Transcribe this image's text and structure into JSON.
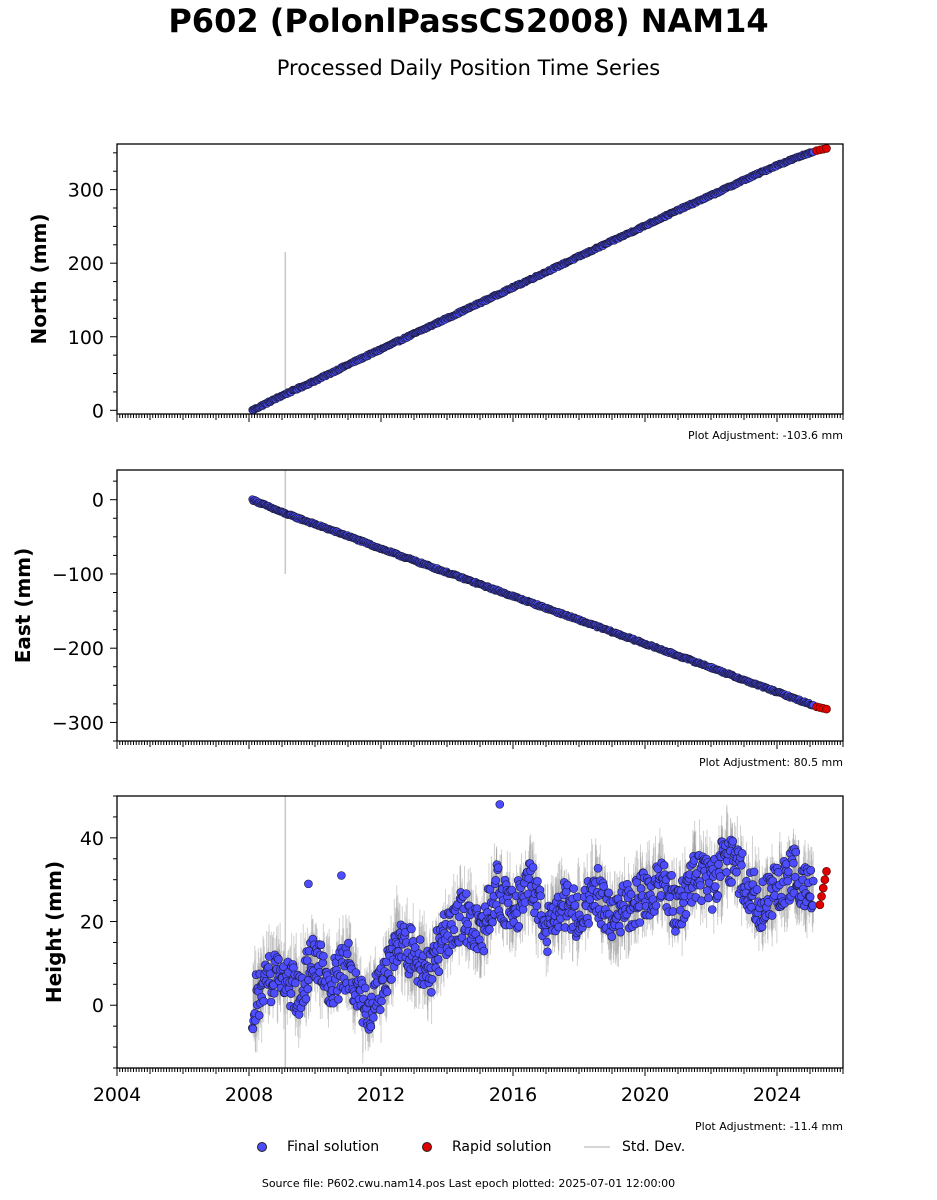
{
  "header": {
    "title": "P602 (PolonlPassCS2008) NAM14",
    "subtitle": "Processed Daily Position Time Series"
  },
  "footer": {
    "source": "Source file: P602.cwu.nam14.pos  Last epoch plotted: 2025-07-01 12:00:00"
  },
  "legend": {
    "final": "Final solution",
    "rapid": "Rapid solution",
    "std": "Std. Dev."
  },
  "colors": {
    "final": "#4d4dff",
    "rapid": "#e00000",
    "std": "#c8c8c8",
    "edge": "#1a1a3a"
  },
  "chart_data": [
    {
      "type": "scatter",
      "ylabel": "North (mm)",
      "adjustment": "Plot Adjustment: -103.6 mm",
      "xlim": [
        2004.0,
        2026.0
      ],
      "ylim": [
        -5,
        362
      ],
      "yticks": [
        0,
        100,
        200,
        300
      ],
      "ytick_labels": [
        "0",
        "100",
        "200",
        "300"
      ],
      "series": [
        {
          "name": "Final solution",
          "x": [
            2008.1,
            2009,
            2010,
            2011,
            2012,
            2013,
            2014,
            2015,
            2016,
            2017,
            2018,
            2019,
            2020,
            2021,
            2022,
            2023,
            2024,
            2025.1
          ],
          "y": [
            0,
            20,
            40,
            62,
            83,
            104,
            125,
            146,
            167,
            188,
            209,
            230,
            251,
            272,
            292,
            313,
            333,
            352
          ]
        },
        {
          "name": "Rapid solution",
          "x": [
            2025.2,
            2025.3,
            2025.4,
            2025.5
          ],
          "y": [
            353,
            354,
            355,
            356
          ]
        }
      ],
      "stddev_spike": {
        "x": 2009.1,
        "y_range": [
          15,
          215
        ]
      }
    },
    {
      "type": "scatter",
      "ylabel": "East (mm)",
      "adjustment": "Plot Adjustment: 80.5 mm",
      "xlim": [
        2004.0,
        2026.0
      ],
      "ylim": [
        -325,
        40
      ],
      "yticks": [
        0,
        -100,
        -200,
        -300
      ],
      "ytick_labels": [
        "0",
        "−100",
        "−200",
        "−300"
      ],
      "series": [
        {
          "name": "Final solution",
          "x": [
            2008.1,
            2009,
            2010,
            2011,
            2012,
            2013,
            2014,
            2015,
            2016,
            2017,
            2018,
            2019,
            2020,
            2021,
            2022,
            2023,
            2024,
            2025.1
          ],
          "y": [
            0,
            -17,
            -33,
            -49,
            -66,
            -82,
            -98,
            -114,
            -130,
            -146,
            -162,
            -178,
            -194,
            -210,
            -226,
            -243,
            -259,
            -277
          ]
        },
        {
          "name": "Rapid solution",
          "x": [
            2025.2,
            2025.3,
            2025.4,
            2025.5
          ],
          "y": [
            -279,
            -280,
            -281,
            -282
          ]
        }
      ],
      "stddev_spike": {
        "x": 2009.1,
        "y_range": [
          -100,
          40
        ]
      }
    },
    {
      "type": "scatter",
      "ylabel": "Height (mm)",
      "adjustment": "Plot Adjustment: -11.4 mm",
      "xlim": [
        2004.0,
        2026.0
      ],
      "ylim": [
        -15,
        50
      ],
      "yticks": [
        0,
        20,
        40
      ],
      "ytick_labels": [
        "0",
        "20",
        "40"
      ],
      "xticks": [
        2004,
        2008,
        2012,
        2016,
        2020,
        2024
      ],
      "xtick_labels": [
        "2004",
        "2008",
        "2012",
        "2016",
        "2020",
        "2024"
      ],
      "series": [
        {
          "name": "Final solution",
          "x": [
            2008.1,
            2008.5,
            2009,
            2009.5,
            2010,
            2010.5,
            2011,
            2011.5,
            2012,
            2012.5,
            2013,
            2013.5,
            2014,
            2014.5,
            2015,
            2015.5,
            2016,
            2016.5,
            2017,
            2017.5,
            2018,
            2018.5,
            2019,
            2019.5,
            2020,
            2020.5,
            2021,
            2021.5,
            2022,
            2022.5,
            2023,
            2023.5,
            2024,
            2024.5,
            2025.1
          ],
          "y": [
            0,
            6,
            8,
            3,
            12,
            5,
            10,
            -2,
            4,
            16,
            12,
            8,
            18,
            22,
            16,
            28,
            22,
            30,
            18,
            24,
            22,
            28,
            20,
            24,
            26,
            30,
            22,
            32,
            28,
            36,
            30,
            24,
            28,
            32,
            26
          ]
        },
        {
          "name": "Rapid solution",
          "x": [
            2025.3,
            2025.35,
            2025.4,
            2025.45,
            2025.5
          ],
          "y": [
            24,
            26,
            28,
            30,
            32
          ]
        }
      ],
      "outliers": {
        "x": [
          2015.6,
          2010.8,
          2009.8
        ],
        "y": [
          48,
          31,
          29
        ]
      },
      "stddev_spike": {
        "x": 2009.1,
        "y_range": [
          -15,
          50
        ]
      }
    }
  ]
}
